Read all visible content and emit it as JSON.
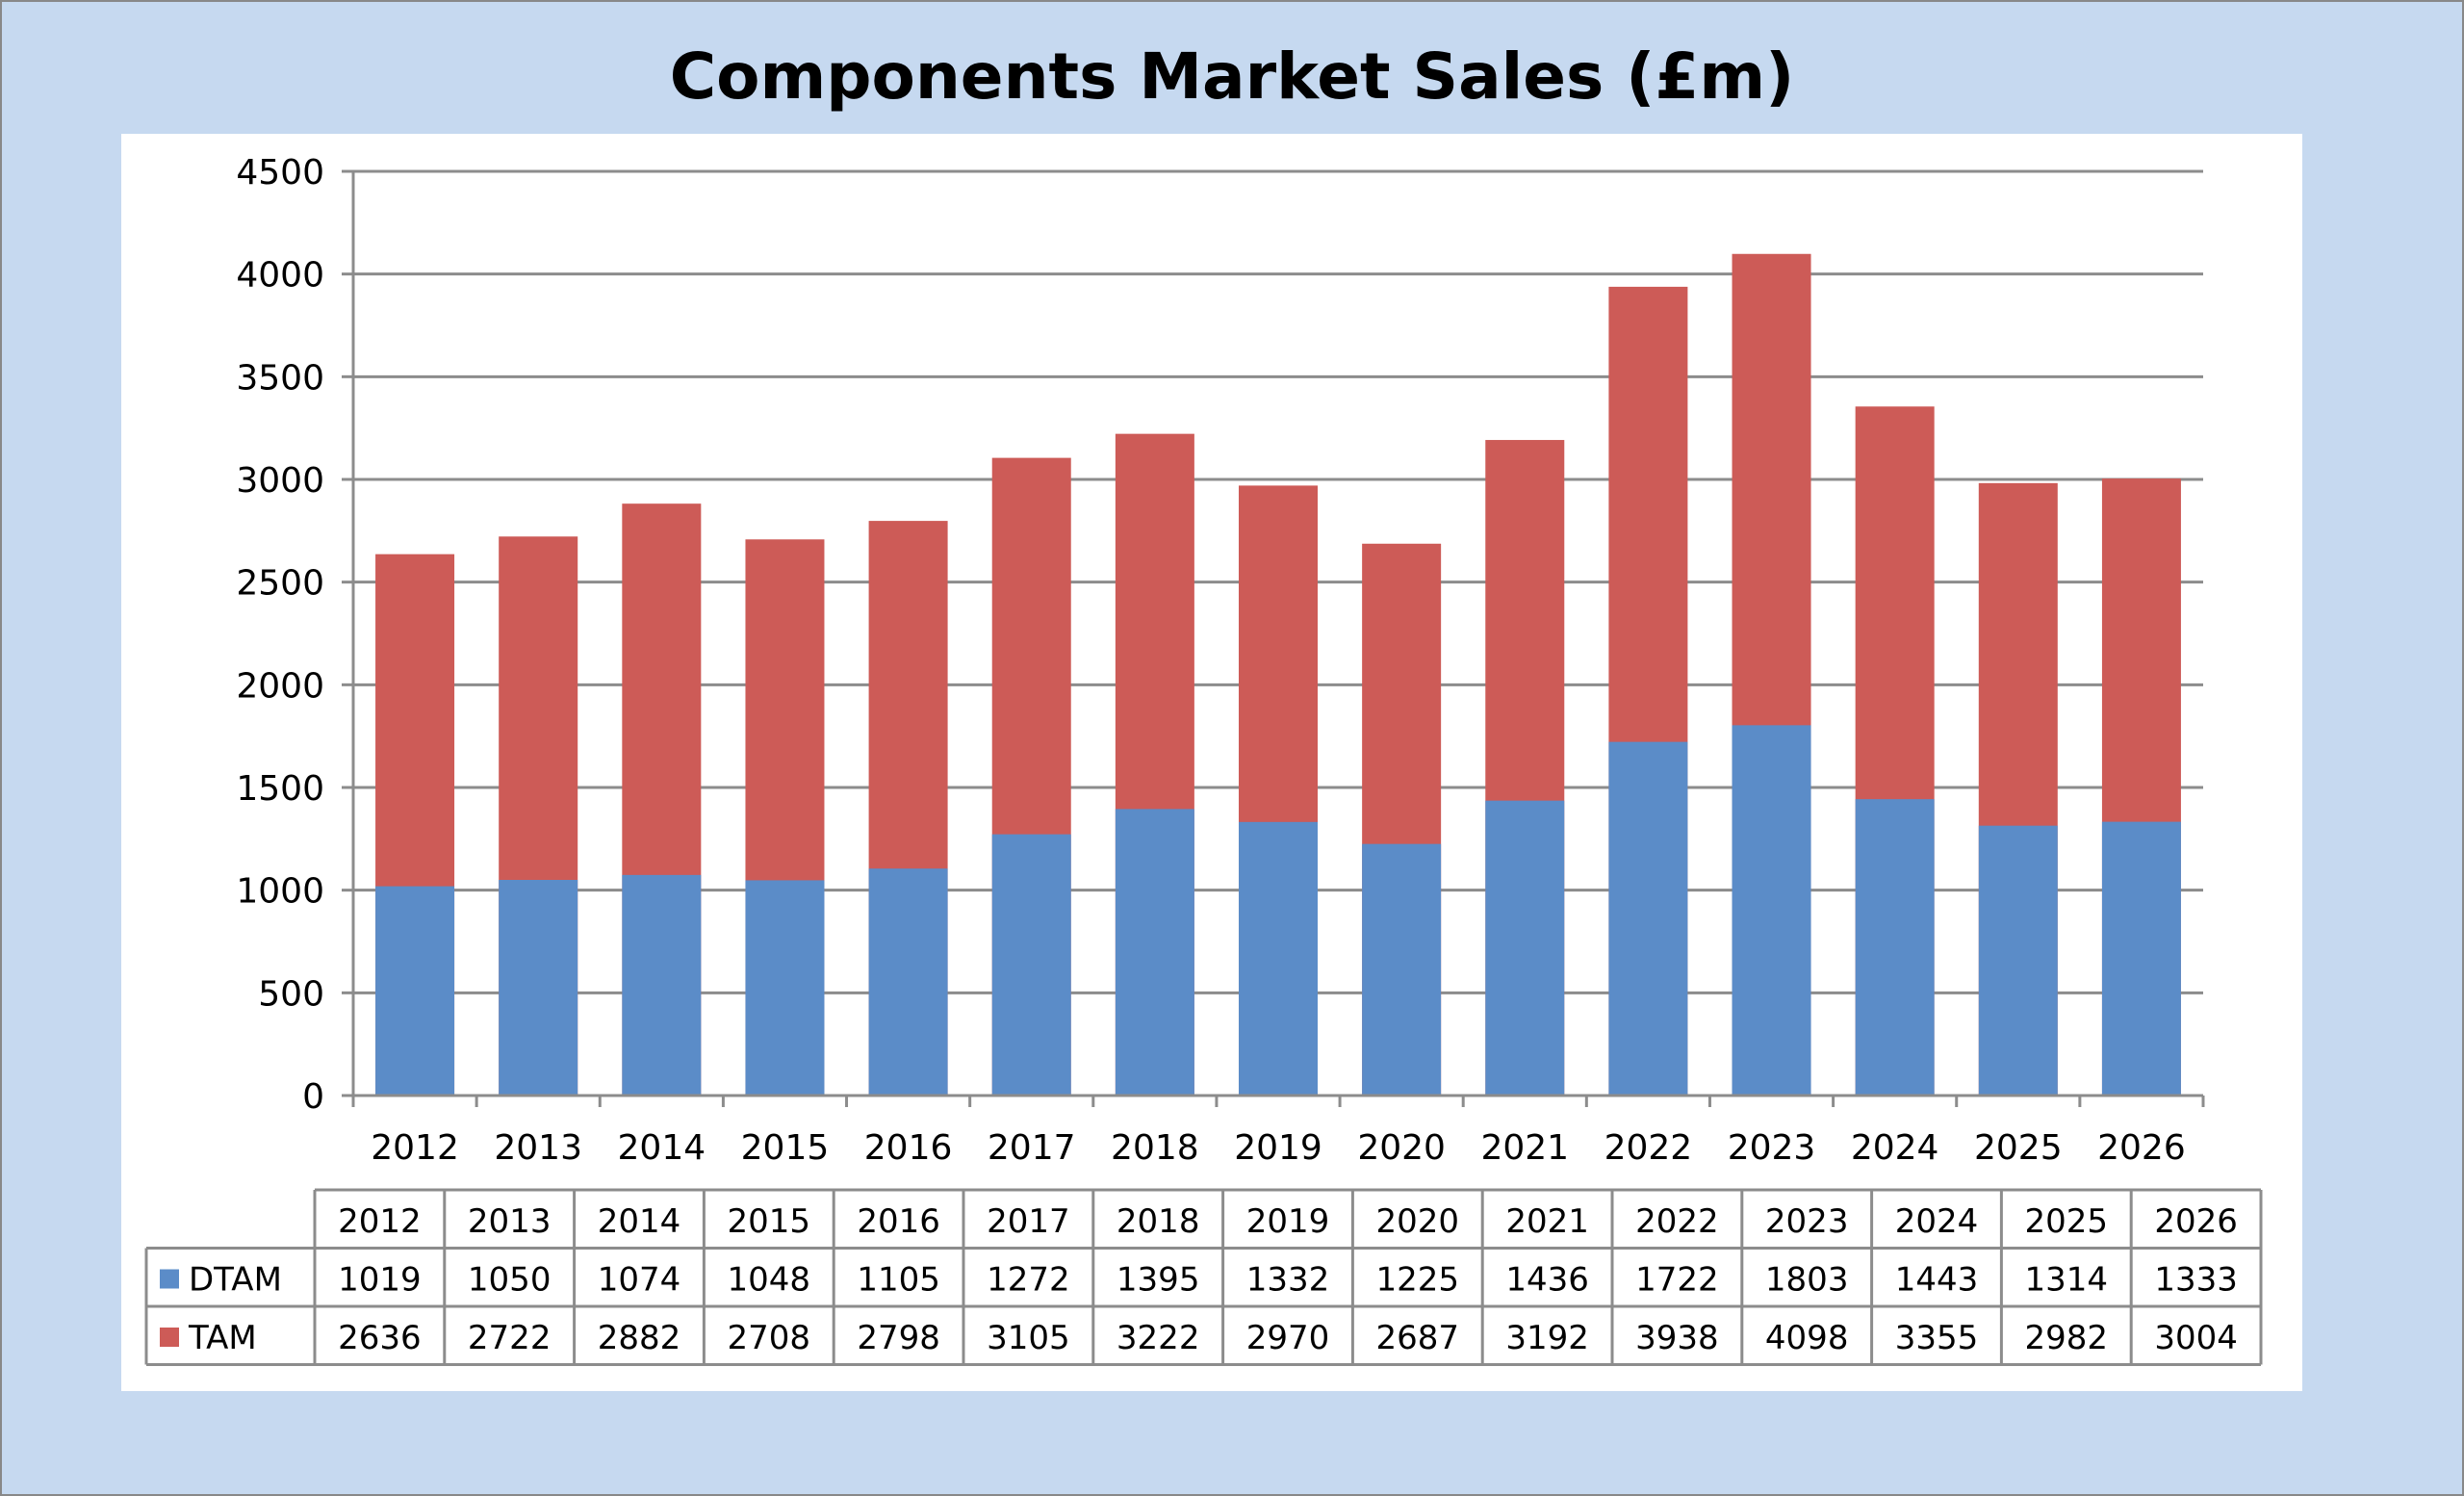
{
  "chart_data": {
    "type": "bar",
    "title": "Components Market Sales (£m)",
    "categories": [
      "2012",
      "2013",
      "2014",
      "2015",
      "2016",
      "2017",
      "2018",
      "2019",
      "2020",
      "2021",
      "2022",
      "2023",
      "2024",
      "2025",
      "2026"
    ],
    "series": [
      {
        "name": "DTAM",
        "color": "#5b8cc8",
        "values": [
          1019,
          1050,
          1074,
          1048,
          1105,
          1272,
          1395,
          1332,
          1225,
          1436,
          1722,
          1803,
          1443,
          1314,
          1333
        ]
      },
      {
        "name": "TAM",
        "color": "#cd5b57",
        "values": [
          2636,
          2722,
          2882,
          2708,
          2798,
          3105,
          3222,
          2970,
          2687,
          3192,
          3938,
          4098,
          3355,
          2982,
          3004
        ]
      }
    ],
    "ylim": [
      0,
      4500
    ],
    "yticks": [
      "0",
      "500",
      "1000",
      "1500",
      "2000",
      "2500",
      "3000",
      "3500",
      "4000",
      "4500"
    ],
    "grid": true,
    "legend": "data-table",
    "xlabel": "",
    "ylabel": ""
  }
}
